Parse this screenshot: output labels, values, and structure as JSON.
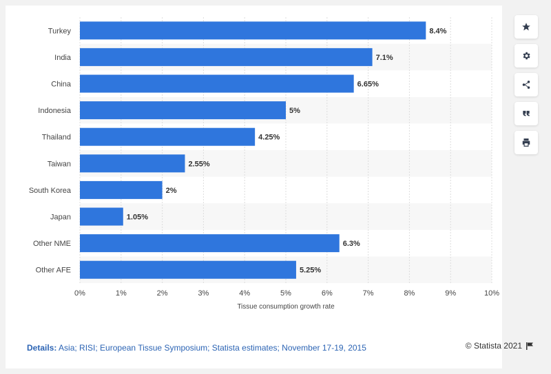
{
  "chart_data": {
    "type": "bar",
    "orientation": "horizontal",
    "categories": [
      "Turkey",
      "India",
      "China",
      "Indonesia",
      "Thailand",
      "Taiwan",
      "South Korea",
      "Japan",
      "Other NME",
      "Other AFE"
    ],
    "values": [
      8.4,
      7.1,
      6.65,
      5,
      4.25,
      2.55,
      2,
      1.05,
      6.3,
      5.25
    ],
    "value_labels": [
      "8.4%",
      "7.1%",
      "6.65%",
      "5%",
      "4.25%",
      "2.55%",
      "2%",
      "1.05%",
      "6.3%",
      "5.25%"
    ],
    "xlabel": "Tissue consumption growth rate",
    "xlim": [
      0,
      10
    ],
    "x_ticks": [
      "0%",
      "1%",
      "2%",
      "3%",
      "4%",
      "5%",
      "6%",
      "7%",
      "8%",
      "9%",
      "10%"
    ],
    "grid": true,
    "bar_color": "#2f76dd"
  },
  "footer": {
    "details_label": "Details:",
    "details_text": "Asia; RISI; European Tissue Symposium; Statista estimates; November 17-19, 2015",
    "credit": "© Statista 2021"
  },
  "sidebar": {
    "icons": [
      "star-icon",
      "gear-icon",
      "share-icon",
      "quote-icon",
      "print-icon"
    ]
  }
}
